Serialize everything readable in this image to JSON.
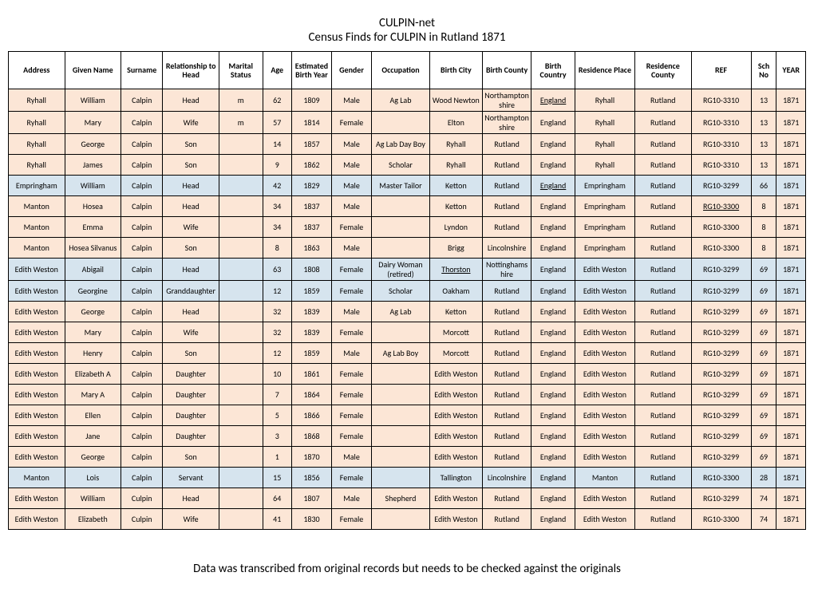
{
  "title": "CULPIN-net",
  "subtitle": "Census Finds for CULPIN in Rutland 1871",
  "footer": "Data was transcribed from original records but needs to be checked against the originals",
  "colors": {
    "peach": "#fce6d6",
    "blue": "#d6e4ee",
    "header_bg": "#ffffff",
    "border": "#000000"
  },
  "columns": [
    "Address",
    "Given Name",
    "Surname",
    "Relationship to Head",
    "Marital Status",
    "Age",
    "Estimated Birth Year",
    "Gender",
    "Occupation",
    "Birth City",
    "Birth County",
    "Birth Country",
    "Residence Place",
    "Residence County",
    "REF",
    "Sch No",
    "YEAR"
  ],
  "rows": [
    {
      "color": "peach",
      "underline": [
        11
      ],
      "c": [
        "Ryhall",
        "William",
        "Calpin",
        "Head",
        "m",
        "62",
        "1809",
        "Male",
        "Ag Lab",
        "Wood Newton",
        "Northamptonshire",
        "England",
        "Ryhall",
        "Rutland",
        "RG10-3310",
        "13",
        "1871"
      ]
    },
    {
      "color": "peach",
      "c": [
        "Ryhall",
        "Mary",
        "Calpin",
        "Wife",
        "m",
        "57",
        "1814",
        "Female",
        "",
        "Elton",
        "Northamptonshire",
        "England",
        "Ryhall",
        "Rutland",
        "RG10-3310",
        "13",
        "1871"
      ]
    },
    {
      "color": "peach",
      "c": [
        "Ryhall",
        "George",
        "Calpin",
        "Son",
        "",
        "14",
        "1857",
        "Male",
        "Ag Lab Day Boy",
        "Ryhall",
        "Rutland",
        "England",
        "Ryhall",
        "Rutland",
        "RG10-3310",
        "13",
        "1871"
      ]
    },
    {
      "color": "peach",
      "c": [
        "Ryhall",
        "James",
        "Calpin",
        "Son",
        "",
        "9",
        "1862",
        "Male",
        "Scholar",
        "Ryhall",
        "Rutland",
        "England",
        "Ryhall",
        "Rutland",
        "RG10-3310",
        "13",
        "1871"
      ]
    },
    {
      "color": "blue",
      "underline": [
        11
      ],
      "c": [
        "Empringham",
        "William",
        "Calpin",
        "Head",
        "",
        "42",
        "1829",
        "Male",
        "Master Tailor",
        "Ketton",
        "Rutland",
        "England",
        "Empringham",
        "Rutland",
        "RG10-3299",
        "66",
        "1871"
      ]
    },
    {
      "color": "peach",
      "underline": [
        14
      ],
      "c": [
        "Manton",
        "Hosea",
        "Calpin",
        "Head",
        "",
        "34",
        "1837",
        "Male",
        "",
        "Ketton",
        "Rutland",
        "England",
        "Empringham",
        "Rutland",
        "RG10-3300",
        "8",
        "1871"
      ]
    },
    {
      "color": "peach",
      "c": [
        "Manton",
        "Emma",
        "Calpin",
        "Wife",
        "",
        "34",
        "1837",
        "Female",
        "",
        "Lyndon",
        "Rutland",
        "England",
        "Empringham",
        "Rutland",
        "RG10-3300",
        "8",
        "1871"
      ]
    },
    {
      "color": "peach",
      "c": [
        "Manton",
        "Hosea Silvanus",
        "Calpin",
        "Son",
        "",
        "8",
        "1863",
        "Male",
        "",
        "Brigg",
        "Lincolnshire",
        "England",
        "Empringham",
        "Rutland",
        "RG10-3300",
        "8",
        "1871"
      ]
    },
    {
      "color": "blue",
      "underline": [
        9
      ],
      "c": [
        "Edith Weston",
        "Abigail",
        "Calpin",
        "Head",
        "",
        "63",
        "1808",
        "Female",
        "Dairy Woman (retired)",
        "Thorston",
        "Nottinghamshire",
        "England",
        "Edith Weston",
        "Rutland",
        "RG10-3299",
        "69",
        "1871"
      ]
    },
    {
      "color": "blue",
      "c": [
        "Edith Weston",
        "Georgine",
        "Calpin",
        "Granddaughter",
        "",
        "12",
        "1859",
        "Female",
        "Scholar",
        "Oakham",
        "Rutland",
        "England",
        "Edith Weston",
        "Rutland",
        "RG10-3299",
        "69",
        "1871"
      ]
    },
    {
      "color": "peach",
      "c": [
        "Edith Weston",
        "George",
        "Calpin",
        "Head",
        "",
        "32",
        "1839",
        "Male",
        "Ag Lab",
        "Ketton",
        "Rutland",
        "England",
        "Edith Weston",
        "Rutland",
        "RG10-3299",
        "69",
        "1871"
      ]
    },
    {
      "color": "peach",
      "c": [
        "Edith Weston",
        "Mary",
        "Calpin",
        "Wife",
        "",
        "32",
        "1839",
        "Female",
        "",
        "Morcott",
        "Rutland",
        "England",
        "Edith Weston",
        "Rutland",
        "RG10-3299",
        "69",
        "1871"
      ]
    },
    {
      "color": "peach",
      "c": [
        "Edith Weston",
        "Henry",
        "Calpin",
        "Son",
        "",
        "12",
        "1859",
        "Male",
        "Ag Lab Boy",
        "Morcott",
        "Rutland",
        "England",
        "Edith Weston",
        "Rutland",
        "RG10-3299",
        "69",
        "1871"
      ]
    },
    {
      "color": "peach",
      "c": [
        "Edith Weston",
        "Elizabeth A",
        "Calpin",
        "Daughter",
        "",
        "10",
        "1861",
        "Female",
        "",
        "Edith Weston",
        "Rutland",
        "England",
        "Edith Weston",
        "Rutland",
        "RG10-3299",
        "69",
        "1871"
      ]
    },
    {
      "color": "peach",
      "c": [
        "Edith Weston",
        "Mary A",
        "Calpin",
        "Daughter",
        "",
        "7",
        "1864",
        "Female",
        "",
        "Edith Weston",
        "Rutland",
        "England",
        "Edith Weston",
        "Rutland",
        "RG10-3299",
        "69",
        "1871"
      ]
    },
    {
      "color": "peach",
      "c": [
        "Edith Weston",
        "Ellen",
        "Calpin",
        "Daughter",
        "",
        "5",
        "1866",
        "Female",
        "",
        "Edith Weston",
        "Rutland",
        "England",
        "Edith Weston",
        "Rutland",
        "RG10-3299",
        "69",
        "1871"
      ]
    },
    {
      "color": "peach",
      "c": [
        "Edith Weston",
        "Jane",
        "Calpin",
        "Daughter",
        "",
        "3",
        "1868",
        "Female",
        "",
        "Edith Weston",
        "Rutland",
        "England",
        "Edith Weston",
        "Rutland",
        "RG10-3299",
        "69",
        "1871"
      ]
    },
    {
      "color": "peach",
      "c": [
        "Edith Weston",
        "George",
        "Calpin",
        "Son",
        "",
        "1",
        "1870",
        "Male",
        "",
        "Edith Weston",
        "Rutland",
        "England",
        "Edith Weston",
        "Rutland",
        "RG10-3299",
        "69",
        "1871"
      ]
    },
    {
      "color": "blue",
      "c": [
        "Manton",
        "Lois",
        "Calpin",
        "Servant",
        "",
        "15",
        "1856",
        "Female",
        "",
        "Tallington",
        "Lincolnshire",
        "England",
        "Manton",
        "Rutland",
        "RG10-3300",
        "28",
        "1871"
      ]
    },
    {
      "color": "peach",
      "c": [
        "Edith Weston",
        "William",
        "Culpin",
        "Head",
        "",
        "64",
        "1807",
        "Male",
        "Shepherd",
        "Edith Weston",
        "Rutland",
        "England",
        "Edith Weston",
        "Rutland",
        "RG10-3299",
        "74",
        "1871"
      ]
    },
    {
      "color": "peach",
      "c": [
        "Edith Weston",
        "Elizabeth",
        "Culpin",
        "Wife",
        "",
        "41",
        "1830",
        "Female",
        "",
        "Edith Weston",
        "Rutland",
        "England",
        "Edith Weston",
        "Rutland",
        "RG10-3300",
        "74",
        "1871"
      ]
    }
  ]
}
